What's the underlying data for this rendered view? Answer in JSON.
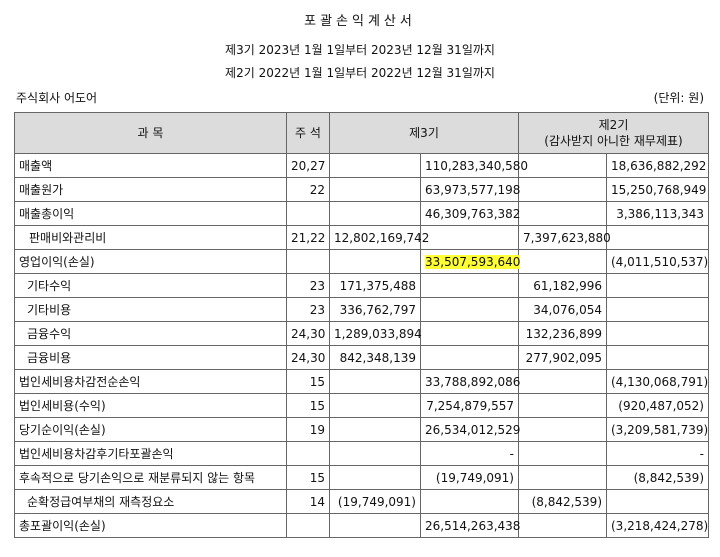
{
  "header": {
    "title": "포괄손익계산서",
    "period_current": "제3기 2023년 1월 1일부터 2023년 12월 31일까지",
    "period_prior": "제2기 2022년 1월 1일부터 2022년 12월 31일까지",
    "company": "주식회사 어도어",
    "unit": "(단위: 원)"
  },
  "table": {
    "columns": {
      "account": "과 목",
      "note": "주 석",
      "current": "제3기",
      "prior": "제2기",
      "prior_sub": "(감사받지 아니한 재무제표)"
    },
    "rows": [
      {
        "account": "매출액",
        "note": "20,27",
        "c1": "",
        "c2": "110,283,340,580",
        "p1": "",
        "p2": "18,636,882,292"
      },
      {
        "account": "매출원가",
        "note": "22",
        "c1": "",
        "c2": "63,973,577,198",
        "p1": "",
        "p2": "15,250,768,949"
      },
      {
        "account": "매출총이익",
        "note": "",
        "c1": "",
        "c2": "46,309,763,382",
        "p1": "",
        "p2": "3,386,113,343"
      },
      {
        "account": "판매비와관리비",
        "note": "21,22",
        "c1": "12,802,169,742",
        "c2": "",
        "p1": "7,397,623,880",
        "p2": ""
      },
      {
        "account": "영업이익(손실)",
        "note": "",
        "c1": "",
        "c2": "33,507,593,640",
        "p1": "",
        "p2": "(4,011,510,537)"
      },
      {
        "account": "기타수익",
        "note": "23",
        "c1": "171,375,488",
        "c2": "",
        "p1": "61,182,996",
        "p2": ""
      },
      {
        "account": "기타비용",
        "note": "23",
        "c1": "336,762,797",
        "c2": "",
        "p1": "34,076,054",
        "p2": ""
      },
      {
        "account": "금융수익",
        "note": "24,30",
        "c1": "1,289,033,894",
        "c2": "",
        "p1": "132,236,899",
        "p2": ""
      },
      {
        "account": "금융비용",
        "note": "24,30",
        "c1": "842,348,139",
        "c2": "",
        "p1": "277,902,095",
        "p2": ""
      },
      {
        "account": "법인세비용차감전순손익",
        "note": "15",
        "c1": "",
        "c2": "33,788,892,086",
        "p1": "",
        "p2": "(4,130,068,791)"
      },
      {
        "account": "법인세비용(수익)",
        "note": "15",
        "c1": "",
        "c2": "7,254,879,557",
        "p1": "",
        "p2": "(920,487,052)"
      },
      {
        "account": "당기순이익(손실)",
        "note": "19",
        "c1": "",
        "c2": "26,534,012,529",
        "p1": "",
        "p2": "(3,209,581,739)"
      },
      {
        "account": "법인세비용차감후기타포괄손익",
        "note": "",
        "c1": "",
        "c2": "-",
        "p1": "",
        "p2": "-"
      },
      {
        "account": "후속적으로 당기손익으로 재분류되지 않는 항목",
        "note": "15",
        "c1": "",
        "c2": "(19,749,091)",
        "p1": "",
        "p2": "(8,842,539)"
      },
      {
        "account": "순확정급여부채의 재측정요소",
        "note": "14",
        "c1": "(19,749,091)",
        "c2": "",
        "p1": "(8,842,539)",
        "p2": ""
      },
      {
        "account": "총포괄이익(손실)",
        "note": "",
        "c1": "",
        "c2": "26,514,263,438",
        "p1": "",
        "p2": "(3,218,424,278)"
      }
    ]
  },
  "highlight_color": "#ffff33"
}
